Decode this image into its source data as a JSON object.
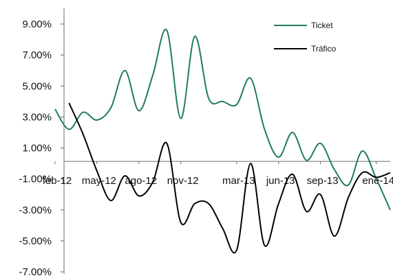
{
  "chart_data": {
    "type": "line",
    "title": "",
    "xlabel": "",
    "ylabel": "",
    "ylim": [
      -7,
      9
    ],
    "y_ticks": [
      9,
      7,
      5,
      3,
      1,
      -1,
      -3,
      -5,
      -7
    ],
    "y_tick_labels": [
      "9.00%",
      "7.00%",
      "5.00%",
      "3.00%",
      "1.00%",
      "-1.00%",
      "-3.00%",
      "-5.00%",
      "-7.00%"
    ],
    "x_tick_labels": [
      "feb-12",
      "may-12",
      "ago-12",
      "nov-12",
      "mar-13",
      "jun-13",
      "sep-13",
      "ene-14"
    ],
    "x": [
      "feb-12",
      "mar-12",
      "abr-12",
      "may-12",
      "jun-12",
      "jul-12",
      "ago-12",
      "sep-12",
      "oct-12",
      "nov-12",
      "dic-12",
      "ene-13",
      "feb-13",
      "mar-13",
      "abr-13",
      "may-13",
      "jun-13",
      "jul-13",
      "ago-13",
      "sep-13",
      "oct-13",
      "nov-13",
      "dic-13",
      "ene-14",
      "feb-14"
    ],
    "grid": false,
    "legend_position": "top-right",
    "series": [
      {
        "name": "Ticket",
        "color": "#1f7a5e",
        "values": [
          3.5,
          2.2,
          3.3,
          2.8,
          3.6,
          6.0,
          3.4,
          5.7,
          8.6,
          2.9,
          8.2,
          4.2,
          4.0,
          3.8,
          5.5,
          2.2,
          0.4,
          2.0,
          0.2,
          1.3,
          -0.4,
          -1.4,
          0.8,
          -1.0,
          -3.0
        ]
      },
      {
        "name": "Tráfico",
        "color": "#000000",
        "values": [
          null,
          3.9,
          1.9,
          -0.5,
          -2.4,
          -0.8,
          -2.1,
          -1.2,
          1.3,
          -3.8,
          -2.6,
          -2.6,
          -4.2,
          -5.6,
          0.0,
          -5.3,
          -2.6,
          -0.7,
          -3.1,
          -2.0,
          -4.7,
          -2.2,
          -0.6,
          -0.9,
          -0.6
        ]
      }
    ]
  }
}
